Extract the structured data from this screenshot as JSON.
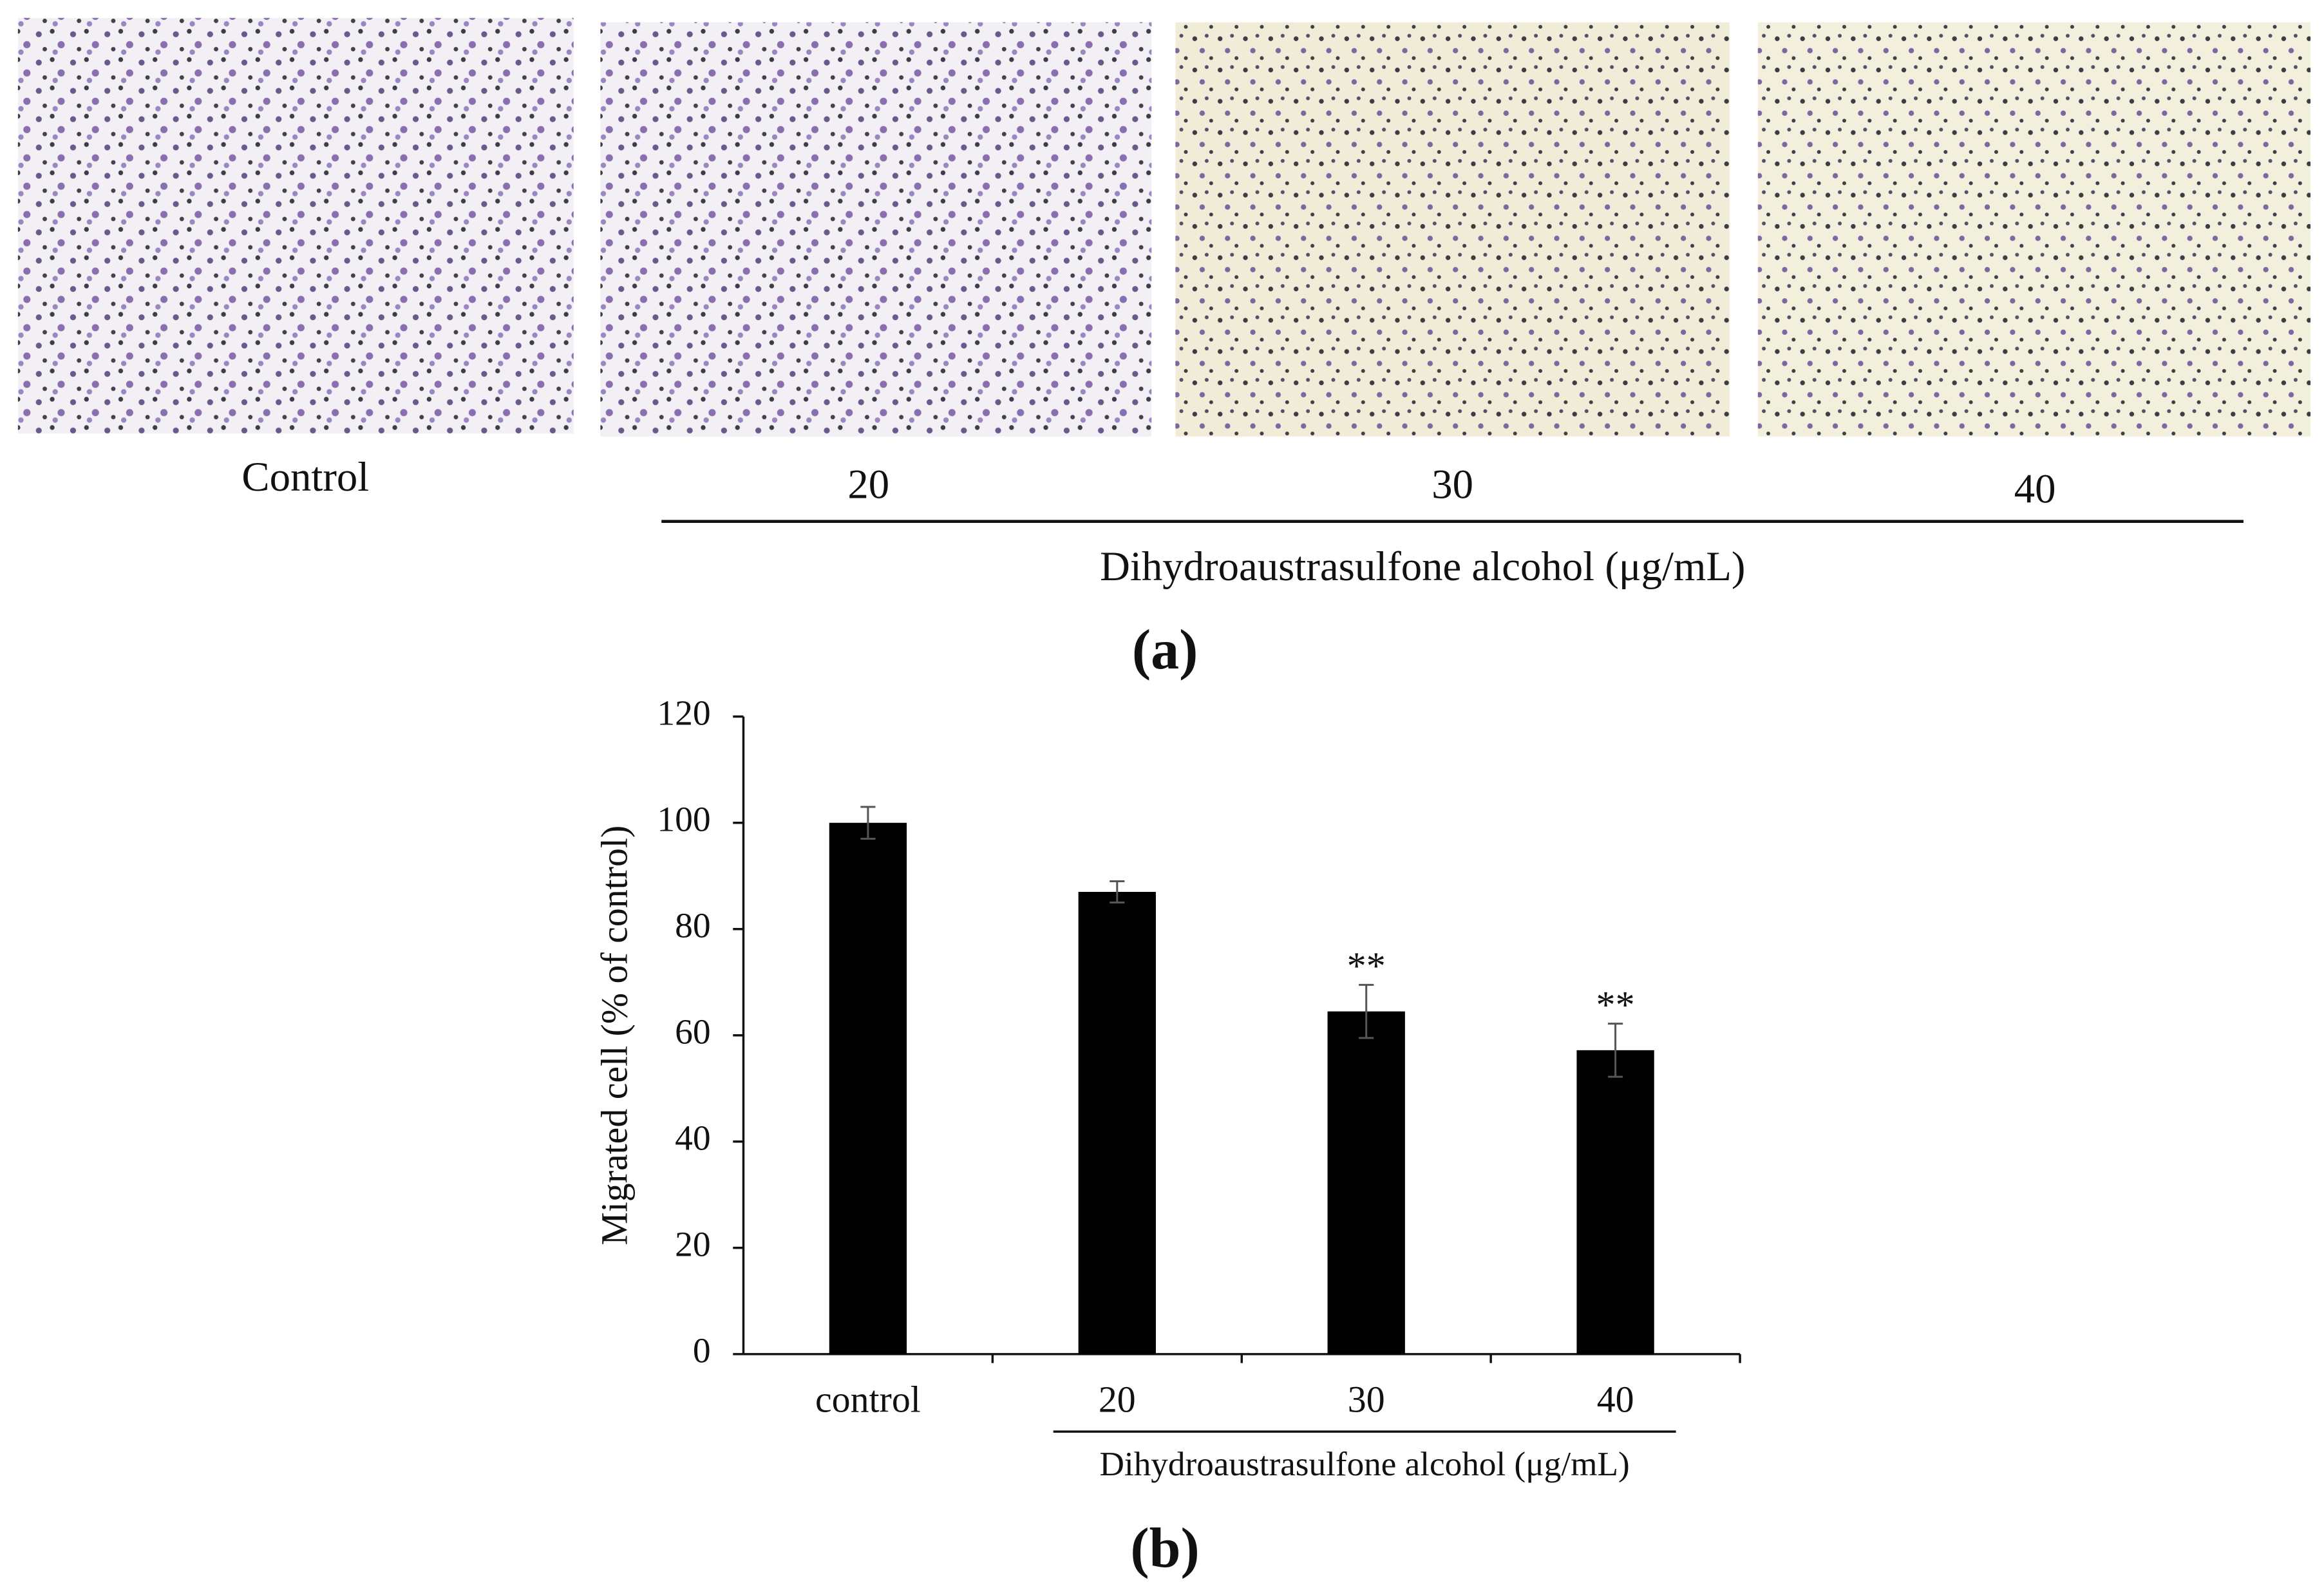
{
  "panel_a": {
    "labels": [
      "Control",
      "20",
      "30",
      "40"
    ],
    "group_label": "Dihydroaustrasulfone alcohol  (μg/mL)",
    "caption": "(a)"
  },
  "chart_data": {
    "type": "bar",
    "ylabel": "Migrated cell (% of control)",
    "categories": [
      "control",
      "20",
      "30",
      "40"
    ],
    "values": [
      100,
      87,
      64.5,
      57.2
    ],
    "errors": [
      3,
      2,
      5,
      5
    ],
    "significance": [
      null,
      null,
      "**",
      "**"
    ],
    "color": "#000000",
    "ylim": [
      0,
      120
    ],
    "yticks": [
      0,
      20,
      40,
      60,
      80,
      100,
      120
    ],
    "grid": false,
    "group_label": "Dihydroaustrasulfone alcohol  (μg/mL)",
    "caption": "(b)"
  }
}
